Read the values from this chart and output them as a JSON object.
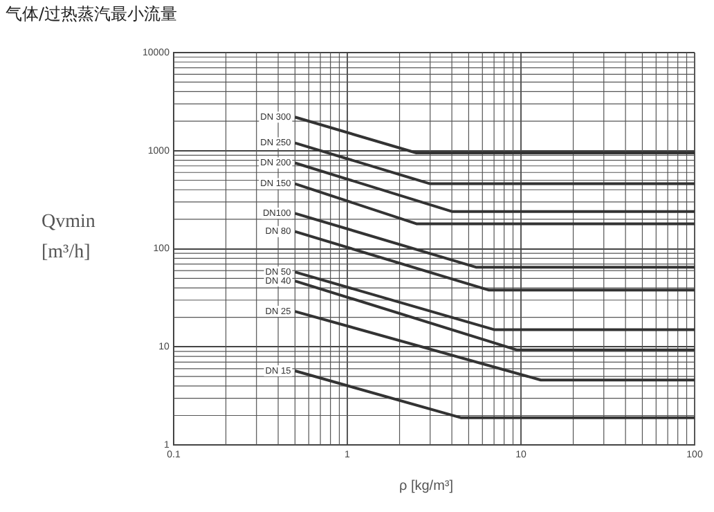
{
  "chart_data": {
    "type": "line",
    "title": "气体/过热蒸汽最小流量",
    "xlabel": "ρ [kg/m³]",
    "ylabel": "Qvmin [m³/h]",
    "log": "xy",
    "xlim": [
      0.1,
      100
    ],
    "ylim": [
      1,
      10000
    ],
    "xticks": [
      0.1,
      1,
      10,
      100
    ],
    "yticks": [
      1,
      10,
      100,
      1000,
      10000
    ],
    "grid": true,
    "legend": false,
    "marker": "none",
    "line_style": "solid",
    "series": [
      {
        "name": "DN 300",
        "color": "#333333",
        "x": [
          0.5,
          2.5,
          100
        ],
        "values": [
          2200,
          950,
          950
        ]
      },
      {
        "name": "DN 250",
        "color": "#333333",
        "x": [
          0.5,
          3,
          100
        ],
        "values": [
          1200,
          460,
          460
        ]
      },
      {
        "name": "DN 200",
        "color": "#333333",
        "x": [
          0.5,
          4,
          100
        ],
        "values": [
          750,
          240,
          240
        ]
      },
      {
        "name": "DN 150",
        "color": "#333333",
        "x": [
          0.5,
          2.5,
          100
        ],
        "values": [
          460,
          180,
          180
        ]
      },
      {
        "name": "DN100",
        "color": "#333333",
        "x": [
          0.5,
          5.5,
          100
        ],
        "values": [
          230,
          65,
          65
        ]
      },
      {
        "name": "DN 80",
        "color": "#333333",
        "x": [
          0.5,
          6.5,
          100
        ],
        "values": [
          150,
          38,
          38
        ]
      },
      {
        "name": "DN 50",
        "color": "#333333",
        "x": [
          0.5,
          7,
          100
        ],
        "values": [
          58,
          15,
          15
        ]
      },
      {
        "name": "DN 40",
        "color": "#333333",
        "x": [
          0.5,
          9.5,
          100
        ],
        "values": [
          47,
          9.3,
          9.3
        ]
      },
      {
        "name": "DN 25",
        "color": "#333333",
        "x": [
          0.5,
          13,
          100
        ],
        "values": [
          23,
          4.6,
          4.6
        ]
      },
      {
        "name": "DN 15",
        "color": "#333333",
        "x": [
          0.5,
          4.5,
          100
        ],
        "values": [
          5.7,
          1.9,
          1.9
        ]
      }
    ]
  }
}
